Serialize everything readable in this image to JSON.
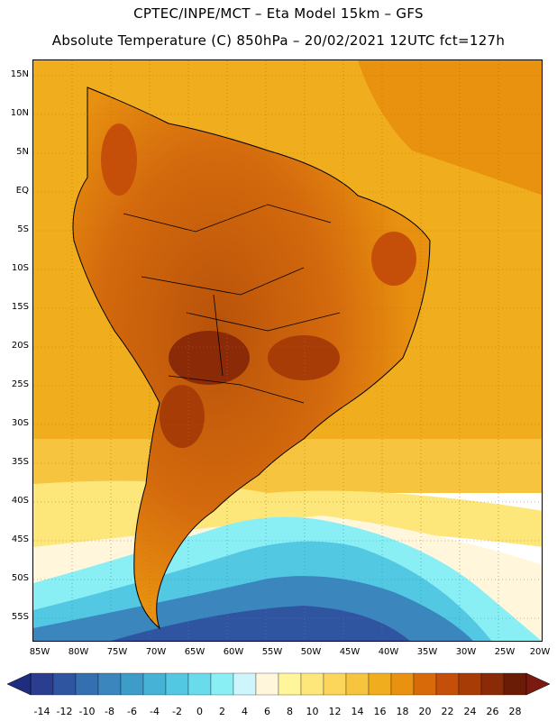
{
  "header": {
    "line1": "CPTEC/INPE/MCT –  Eta Model 15km – GFS",
    "line2": "Absolute Temperature (C) 850hPa – 20/02/2021 12UTC fct=127h"
  },
  "map": {
    "lat_labels": [
      "15N",
      "10N",
      "5N",
      "EQ",
      "5S",
      "10S",
      "15S",
      "20S",
      "25S",
      "30S",
      "35S",
      "40S",
      "45S",
      "50S",
      "55S"
    ],
    "lon_labels": [
      "85W",
      "80W",
      "75W",
      "70W",
      "65W",
      "60W",
      "55W",
      "50W",
      "45W",
      "40W",
      "35W",
      "30W",
      "25W",
      "20W"
    ]
  },
  "colorbar": {
    "labels": [
      "-14",
      "-12",
      "-10",
      "-8",
      "-6",
      "-4",
      "-2",
      "0",
      "2",
      "4",
      "6",
      "8",
      "10",
      "12",
      "14",
      "16",
      "18",
      "20",
      "22",
      "24",
      "26",
      "28"
    ],
    "colors": [
      "#2a3d8f",
      "#2f55a0",
      "#3470b0",
      "#3a86bd",
      "#3e9cc9",
      "#45b2d6",
      "#52c8e2",
      "#6adbeb",
      "#8aeff5",
      "#cdf5fb",
      "#fff6dc",
      "#fff59a",
      "#fde67a",
      "#fbd65a",
      "#f6c43e",
      "#f0ae1f",
      "#e8920f",
      "#d96a0a",
      "#c54f08",
      "#a83c07",
      "#8b2a07",
      "#6b1c06"
    ],
    "end_low_color": "#1e2d80",
    "end_high_color": "#7a1a10"
  }
}
